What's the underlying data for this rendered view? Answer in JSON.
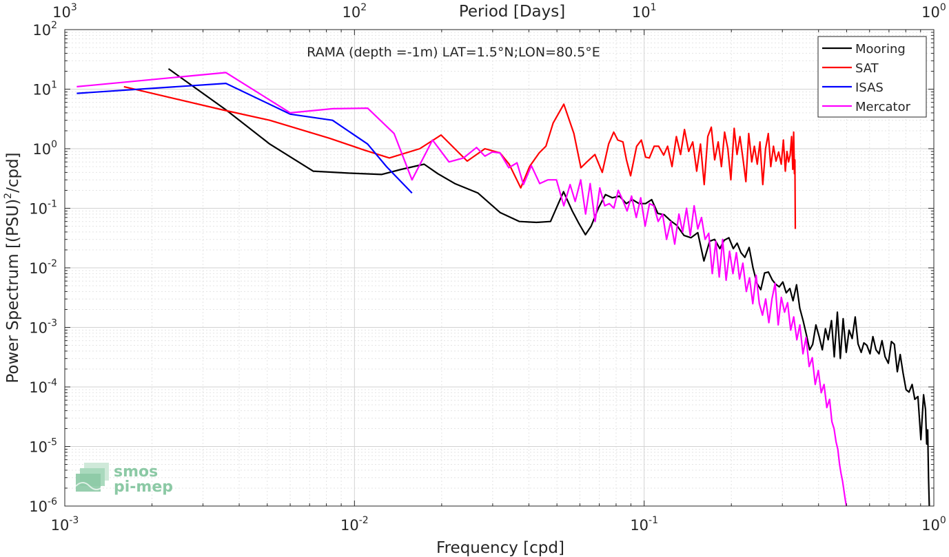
{
  "chart_data": {
    "type": "line",
    "title": "RAMA (depth =-1m) LAT=1.5°N;LON=80.5°E",
    "xlabel": "Frequency [cpd]",
    "ylabel": "Power Spectrum [(PSU)²/cpd]",
    "top_xlabel": "Period [Days]",
    "x_scale": "log",
    "y_scale": "log",
    "xlim": [
      0.001,
      1
    ],
    "ylim": [
      1e-06,
      100
    ],
    "grid": true,
    "legend_position": "top-right",
    "x_ticks": [
      {
        "base": "10",
        "exp": "-3",
        "value": 0.001
      },
      {
        "base": "10",
        "exp": "-2",
        "value": 0.01
      },
      {
        "base": "10",
        "exp": "-1",
        "value": 0.1
      },
      {
        "base": "10",
        "exp": "0",
        "value": 1
      }
    ],
    "y_ticks": [
      {
        "base": "10",
        "exp": "-6",
        "value": 1e-06
      },
      {
        "base": "10",
        "exp": "-5",
        "value": 1e-05
      },
      {
        "base": "10",
        "exp": "-4",
        "value": 0.0001
      },
      {
        "base": "10",
        "exp": "-3",
        "value": 0.001
      },
      {
        "base": "10",
        "exp": "-2",
        "value": 0.01
      },
      {
        "base": "10",
        "exp": "-1",
        "value": 0.1
      },
      {
        "base": "10",
        "exp": "0",
        "value": 1
      },
      {
        "base": "10",
        "exp": "1",
        "value": 10
      },
      {
        "base": "10",
        "exp": "2",
        "value": 100
      }
    ],
    "top_ticks": [
      {
        "base": "10",
        "exp": "3",
        "value": 0.001
      },
      {
        "base": "10",
        "exp": "2",
        "value": 0.01
      },
      {
        "base": "10",
        "exp": "1",
        "value": 0.1
      },
      {
        "base": "10",
        "exp": "0",
        "value": 1
      }
    ],
    "series": [
      {
        "name": "Mooring",
        "color": "#000000",
        "x": [
          0.00228,
          0.0036,
          0.0051,
          0.0072,
          0.0095,
          0.0124,
          0.0145,
          0.0174,
          0.0194,
          0.0222,
          0.0267,
          0.0318,
          0.0371,
          0.0425,
          0.0475,
          0.0527,
          0.0565,
          0.0596,
          0.0627,
          0.0656,
          0.0695,
          0.0735,
          0.0776,
          0.0821,
          0.0868,
          0.0911,
          0.096,
          0.1012,
          0.1062,
          0.1115,
          0.1172,
          0.1238,
          0.1295,
          0.1372,
          0.1452,
          0.1532,
          0.1608,
          0.1683,
          0.1751,
          0.1825,
          0.1888,
          0.1961,
          0.2031,
          0.2094,
          0.2158,
          0.2227,
          0.2304,
          0.2375,
          0.2451,
          0.2527,
          0.2604,
          0.2685,
          0.2767,
          0.2846,
          0.2927,
          0.3012,
          0.3093,
          0.3184,
          0.3265,
          0.3358,
          0.3445,
          0.3538,
          0.3631,
          0.3726,
          0.3817,
          0.3917,
          0.4012,
          0.4121,
          0.4225,
          0.4318,
          0.4432,
          0.4531,
          0.4645,
          0.4755,
          0.4862,
          0.4985,
          0.5098,
          0.5224,
          0.5352,
          0.5475,
          0.5614,
          0.5735,
          0.5872,
          0.6022,
          0.6163,
          0.6315,
          0.6468,
          0.6625,
          0.6788,
          0.6965,
          0.7134,
          0.7305,
          0.7481,
          0.7654,
          0.7832,
          0.8021,
          0.8212,
          0.8415,
          0.8596,
          0.8812,
          0.9022,
          0.9218,
          0.9358,
          0.9448,
          0.9523,
          0.9588,
          0.9645
        ],
        "y": [
          22,
          4.5,
          1.2,
          0.42,
          0.39,
          0.37,
          0.45,
          0.55,
          0.38,
          0.26,
          0.18,
          0.085,
          0.06,
          0.058,
          0.06,
          0.19,
          0.09,
          0.055,
          0.036,
          0.05,
          0.1,
          0.17,
          0.15,
          0.16,
          0.12,
          0.14,
          0.12,
          0.12,
          0.14,
          0.082,
          0.078,
          0.061,
          0.052,
          0.035,
          0.032,
          0.039,
          0.013,
          0.028,
          0.03,
          0.021,
          0.029,
          0.032,
          0.021,
          0.026,
          0.018,
          0.015,
          0.022,
          0.01,
          0.0055,
          0.0043,
          0.0082,
          0.0085,
          0.0063,
          0.0053,
          0.0048,
          0.0058,
          0.0038,
          0.0045,
          0.0028,
          0.0052,
          0.0021,
          0.0013,
          0.00075,
          0.00042,
          0.00052,
          0.0011,
          0.00072,
          0.00042,
          0.00095,
          0.00062,
          0.0013,
          0.00032,
          0.0018,
          0.0003,
          0.0014,
          0.00038,
          0.0009,
          0.00065,
          0.0015,
          0.00053,
          0.00038,
          0.00055,
          0.0005,
          0.00036,
          0.0007,
          0.00042,
          0.00036,
          0.0006,
          0.00032,
          0.00025,
          0.00058,
          0.00052,
          0.00018,
          0.00035,
          0.00017,
          9e-05,
          8.2e-05,
          0.00011,
          6.2e-05,
          6.9e-05,
          1.3e-05,
          7.4e-05,
          4.2e-05,
          1.1e-05,
          1.9e-05,
          3e-06,
          1e-06
        ]
      },
      {
        "name": "SAT",
        "color": "#ff0000",
        "x": [
          0.0016,
          0.0035,
          0.0051,
          0.0082,
          0.0108,
          0.0132,
          0.0168,
          0.0199,
          0.0245,
          0.0282,
          0.0318,
          0.0342,
          0.0375,
          0.0402,
          0.0434,
          0.0458,
          0.0485,
          0.0528,
          0.0572,
          0.0605,
          0.0634,
          0.0676,
          0.0717,
          0.0754,
          0.0785,
          0.0811,
          0.0845,
          0.0869,
          0.0898,
          0.0942,
          0.0978,
          0.1012,
          0.1042,
          0.1083,
          0.1122,
          0.1168,
          0.1205,
          0.1248,
          0.1292,
          0.1336,
          0.1378,
          0.1425,
          0.1472,
          0.1518,
          0.1565,
          0.1612,
          0.1658,
          0.1705,
          0.1752,
          0.1801,
          0.1848,
          0.1895,
          0.1945,
          0.1992,
          0.2045,
          0.2092,
          0.2142,
          0.2192,
          0.2245,
          0.2296,
          0.2352,
          0.2402,
          0.2458,
          0.2511,
          0.2568,
          0.2625,
          0.2682,
          0.2736,
          0.2795,
          0.2852,
          0.2912,
          0.2973,
          0.3025,
          0.3072,
          0.3112,
          0.3152,
          0.3192,
          0.3228,
          0.3258,
          0.3282,
          0.3301,
          0.3315,
          0.3325
        ],
        "y": [
          11,
          4.5,
          3,
          1.5,
          0.95,
          0.7,
          1,
          1.7,
          0.62,
          1,
          0.85,
          0.55,
          0.22,
          0.5,
          0.85,
          1.1,
          2.7,
          5.6,
          1.8,
          0.48,
          0.6,
          0.8,
          0.4,
          1.2,
          1.9,
          1.4,
          1.3,
          0.65,
          0.35,
          1.1,
          1.4,
          0.72,
          0.7,
          1.1,
          1.1,
          0.78,
          1.1,
          0.5,
          1.6,
          0.8,
          2.1,
          0.9,
          1.3,
          0.42,
          1.2,
          0.25,
          1.6,
          2.3,
          0.65,
          1.3,
          0.5,
          1.9,
          1,
          0.3,
          2.2,
          0.8,
          1.6,
          0.7,
          0.28,
          1.8,
          0.6,
          1.1,
          0.55,
          1.3,
          0.25,
          1,
          1.8,
          0.5,
          1.1,
          0.62,
          0.88,
          0.55,
          1.4,
          0.42,
          0.9,
          0.6,
          0.78,
          1.6,
          0.45,
          1.9,
          0.38,
          0.65,
          0.045
        ]
      },
      {
        "name": "ISAS",
        "color": "#0000ff",
        "x": [
          0.0011,
          0.0036,
          0.006,
          0.0084,
          0.0111,
          0.0129,
          0.0158
        ],
        "y": [
          8.5,
          12.5,
          3.8,
          3,
          1.2,
          0.5,
          0.18
        ]
      },
      {
        "name": "Mercator",
        "color": "#ff00ff",
        "x": [
          0.0011,
          0.0036,
          0.006,
          0.0084,
          0.0111,
          0.0137,
          0.0158,
          0.0186,
          0.0212,
          0.0238,
          0.0264,
          0.0282,
          0.0299,
          0.0318,
          0.0341,
          0.0364,
          0.0383,
          0.0408,
          0.0436,
          0.0465,
          0.0498,
          0.0528,
          0.0555,
          0.0578,
          0.0604,
          0.0628,
          0.0651,
          0.0677,
          0.0703,
          0.0731,
          0.0758,
          0.0786,
          0.0814,
          0.0842,
          0.0873,
          0.0905,
          0.0939,
          0.0973,
          0.1008,
          0.1043,
          0.108,
          0.1118,
          0.1158,
          0.1195,
          0.1236,
          0.1275,
          0.1318,
          0.1358,
          0.1401,
          0.1443,
          0.1488,
          0.1532,
          0.1578,
          0.1623,
          0.1671,
          0.1718,
          0.1768,
          0.1816,
          0.1866,
          0.1918,
          0.1972,
          0.2025,
          0.2082,
          0.2135,
          0.2192,
          0.2252,
          0.2311,
          0.2371,
          0.2435,
          0.2498,
          0.2562,
          0.2628,
          0.2695,
          0.2762,
          0.2832,
          0.2902,
          0.2975,
          0.3052,
          0.3128,
          0.3205,
          0.3284,
          0.3365,
          0.3448,
          0.3533,
          0.3621,
          0.3712,
          0.3804,
          0.3896,
          0.3992,
          0.4085,
          0.4178,
          0.4272,
          0.4365,
          0.4448,
          0.4524,
          0.4596,
          0.4662,
          0.4726,
          0.4785,
          0.4842,
          0.4896,
          0.4945,
          0.4988
        ],
        "y": [
          11,
          19,
          4,
          4.7,
          4.8,
          1.8,
          0.3,
          1.4,
          0.6,
          0.7,
          1.05,
          0.75,
          0.88,
          0.85,
          0.48,
          0.58,
          0.25,
          0.52,
          0.26,
          0.3,
          0.3,
          0.11,
          0.25,
          0.13,
          0.3,
          0.08,
          0.26,
          0.06,
          0.22,
          0.11,
          0.12,
          0.1,
          0.2,
          0.14,
          0.09,
          0.16,
          0.07,
          0.15,
          0.05,
          0.12,
          0.11,
          0.06,
          0.08,
          0.03,
          0.06,
          0.025,
          0.08,
          0.04,
          0.1,
          0.035,
          0.11,
          0.045,
          0.07,
          0.03,
          0.038,
          0.008,
          0.028,
          0.007,
          0.03,
          0.0062,
          0.019,
          0.008,
          0.018,
          0.0065,
          0.012,
          0.004,
          0.0068,
          0.0025,
          0.0075,
          0.0025,
          0.0016,
          0.003,
          0.0012,
          0.003,
          0.0055,
          0.0011,
          0.0032,
          0.0018,
          0.0026,
          0.0009,
          0.0015,
          0.00062,
          0.0011,
          0.00036,
          0.00068,
          0.00022,
          0.00031,
          0.00011,
          0.00019,
          8e-05,
          0.00011,
          4.5e-05,
          6.2e-05,
          2.6e-05,
          2e-05,
          1.2e-05,
          9e-06,
          5e-06,
          3.5e-06,
          2.6e-06,
          1.8e-06,
          1.3e-06,
          1e-06
        ]
      }
    ]
  },
  "logo": {
    "line1": "smos",
    "line2": "pi-mep",
    "color": "#8cc9a5"
  }
}
